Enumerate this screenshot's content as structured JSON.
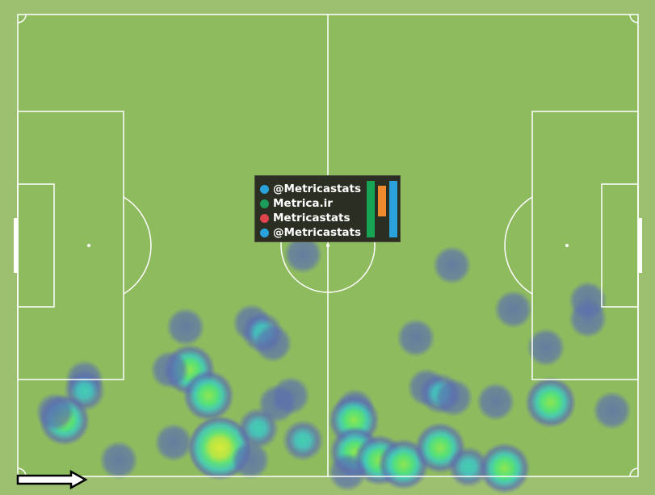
{
  "colors": {
    "outer": "#9cc06f",
    "pitch": "#8fbb5f",
    "lines": "#ffffff",
    "low": "#5a6db0",
    "mid": "#43c9b0",
    "high": "#5fe07a",
    "peak": "#cfe83a"
  },
  "branding": {
    "lines": [
      {
        "icon": "telegram-icon",
        "text": "@Metricastats",
        "color": "#2aa3dd"
      },
      {
        "icon": "globe-icon",
        "text": "Metrica.ir",
        "color": "#1d9d5a"
      },
      {
        "icon": "instagram-icon",
        "text": "Metricastats",
        "color": "#e0434b"
      },
      {
        "icon": "twitter-icon",
        "text": "@Metricastats",
        "color": "#2aa3dd"
      }
    ],
    "logo_bar_colors": [
      "#17a455",
      "#f08a2e",
      "#2aa3dd"
    ]
  },
  "chart_data": {
    "type": "heatmap",
    "pitch": {
      "length": 105,
      "width": 68
    },
    "attack_direction": "right",
    "legend": "none",
    "points": [
      [
        48.3,
        35.3,
        0.3
      ],
      [
        73.5,
        36.9,
        0.3
      ],
      [
        83.9,
        43.4,
        0.3
      ],
      [
        96.5,
        42.1,
        0.35
      ],
      [
        96.5,
        44.8,
        0.35
      ],
      [
        28.4,
        46.0,
        0.3
      ],
      [
        39.6,
        45.4,
        0.3
      ],
      [
        41.4,
        46.8,
        0.5
      ],
      [
        43.2,
        48.4,
        0.3
      ],
      [
        67.4,
        47.6,
        0.3
      ],
      [
        89.4,
        49.0,
        0.3
      ],
      [
        29.1,
        52.3,
        0.8
      ],
      [
        32.3,
        56.1,
        0.8
      ],
      [
        25.7,
        52.3,
        0.3
      ],
      [
        11.3,
        53.7,
        0.3
      ],
      [
        11.3,
        55.4,
        0.5
      ],
      [
        7.9,
        59.7,
        0.8
      ],
      [
        6.3,
        58.5,
        0.3
      ],
      [
        46.2,
        56.1,
        0.3
      ],
      [
        43.9,
        57.3,
        0.3
      ],
      [
        69.2,
        54.9,
        0.3
      ],
      [
        71.5,
        55.8,
        0.5
      ],
      [
        73.8,
        56.4,
        0.3
      ],
      [
        80.9,
        57.0,
        0.3
      ],
      [
        90.2,
        57.1,
        0.8
      ],
      [
        100.6,
        58.3,
        0.3
      ],
      [
        57.1,
        57.9,
        0.3
      ],
      [
        56.9,
        59.7,
        0.8
      ],
      [
        34.2,
        63.8,
        1.0
      ],
      [
        40.7,
        60.9,
        0.5
      ],
      [
        39.4,
        65.6,
        0.3
      ],
      [
        26.4,
        63.0,
        0.3
      ],
      [
        17.1,
        65.6,
        0.3
      ],
      [
        48.3,
        62.7,
        0.5
      ],
      [
        57.1,
        64.4,
        0.8
      ],
      [
        61.2,
        65.6,
        0.8
      ],
      [
        65.3,
        66.2,
        0.8
      ],
      [
        71.5,
        63.8,
        0.8
      ],
      [
        76.3,
        66.6,
        0.5
      ],
      [
        82.4,
        66.8,
        0.8
      ],
      [
        55.8,
        67.4,
        0.3
      ]
    ]
  }
}
